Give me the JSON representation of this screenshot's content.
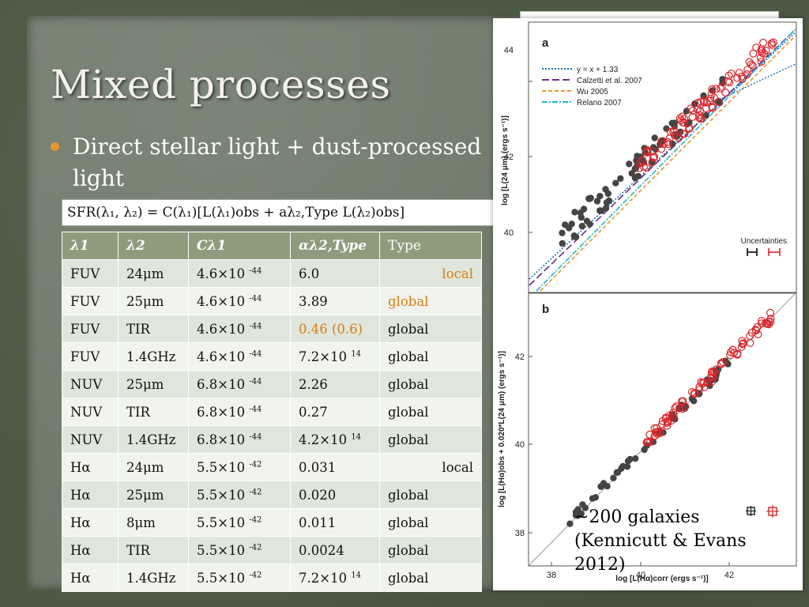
{
  "slide": {
    "title": "Mixed processes",
    "bullet": "Direct stellar light + dust-processed light",
    "formula": "SFR(λ₁, λ₂) = C(λ₁)[L(λ₁)obs + aλ₂,Type L(λ₂)obs]",
    "caption_line1": "~200 galaxies",
    "caption_line2": "(Kennicutt & Evans 2012)"
  },
  "colors": {
    "accent_orange": "#d77d11",
    "header_green": "#8e9c7d"
  },
  "table": {
    "headers": [
      "λ1",
      "λ2",
      "Cλ1",
      "αλ2,Type",
      "Type"
    ],
    "rows": [
      {
        "l1": "FUV",
        "l2": "24μm",
        "c_base": "4.6×10 ",
        "c_exp": "-44",
        "a_base": "6.0",
        "a_exp": "",
        "type": "local",
        "type_style": "orange-right",
        "a_style": ""
      },
      {
        "l1": "FUV",
        "l2": "25μm",
        "c_base": "4.6×10 ",
        "c_exp": "-44",
        "a_base": "3.89",
        "a_exp": "",
        "type": "global",
        "type_style": "orange",
        "a_style": ""
      },
      {
        "l1": "FUV",
        "l2": "TIR",
        "c_base": "4.6×10 ",
        "c_exp": "-44",
        "a_base": "0.46 (0.6)",
        "a_exp": "",
        "type": "global",
        "type_style": "",
        "a_style": "orange"
      },
      {
        "l1": "FUV",
        "l2": "1.4GHz",
        "c_base": "4.6×10 ",
        "c_exp": "-44",
        "a_base": "7.2×10 ",
        "a_exp": "14",
        "type": "global",
        "type_style": "",
        "a_style": ""
      },
      {
        "l1": "NUV",
        "l2": "25μm",
        "c_base": "6.8×10 ",
        "c_exp": "-44",
        "a_base": "2.26",
        "a_exp": "",
        "type": "global",
        "type_style": "",
        "a_style": ""
      },
      {
        "l1": "NUV",
        "l2": "TIR",
        "c_base": "6.8×10 ",
        "c_exp": "-44",
        "a_base": "0.27",
        "a_exp": "",
        "type": "global",
        "type_style": "",
        "a_style": ""
      },
      {
        "l1": "NUV",
        "l2": "1.4GHz",
        "c_base": "6.8×10 ",
        "c_exp": "-44",
        "a_base": "4.2×10 ",
        "a_exp": "14",
        "type": "global",
        "type_style": "",
        "a_style": ""
      },
      {
        "l1": "Hα",
        "l2": "24μm",
        "c_base": "5.5×10 ",
        "c_exp": "-42",
        "a_base": "0.031",
        "a_exp": "",
        "type": "local",
        "type_style": "right",
        "a_style": ""
      },
      {
        "l1": "Hα",
        "l2": "25μm",
        "c_base": "5.5×10 ",
        "c_exp": "-42",
        "a_base": "0.020",
        "a_exp": "",
        "type": "global",
        "type_style": "",
        "a_style": ""
      },
      {
        "l1": "Hα",
        "l2": "8μm",
        "c_base": "5.5×10 ",
        "c_exp": "-42",
        "a_base": "0.011",
        "a_exp": "",
        "type": "global",
        "type_style": "",
        "a_style": ""
      },
      {
        "l1": "Hα",
        "l2": "TIR",
        "c_base": "5.5×10 ",
        "c_exp": "-42",
        "a_base": "0.0024",
        "a_exp": "",
        "type": "global",
        "type_style": "",
        "a_style": ""
      },
      {
        "l1": "Hα",
        "l2": "1.4GHz",
        "c_base": "5.5×10 ",
        "c_exp": "-42",
        "a_base": "7.2×10 ",
        "a_exp": "14",
        "type": "global",
        "type_style": "",
        "a_style": ""
      }
    ]
  },
  "figure": {
    "panel_a": {
      "letter": "a",
      "ylabel": "log [L(24 μm) (ergs s⁻¹)]",
      "yticks": [
        "44",
        "42",
        "40"
      ],
      "legend": [
        {
          "label": "y = x + 1.33",
          "color": "#1f6fb4",
          "dash": "2,2"
        },
        {
          "label": "Calzetti et al. 2007",
          "color": "#6b2c8a",
          "dash": "9,4"
        },
        {
          "label": "Wu 2005",
          "color": "#f0962a",
          "dash": "5,3"
        },
        {
          "label": "Relano 2007",
          "color": "#27b3cf",
          "dash": "7,2,2,2"
        }
      ],
      "uncert_label": "Uncertainties"
    },
    "panel_b": {
      "letter": "b",
      "ylabel": "log [L(Hα)obs + 0.020*L(24 μm) (ergs s⁻¹)]",
      "yticks": [
        "42",
        "40",
        "38"
      ],
      "xticks": [
        "38",
        "40",
        "42"
      ],
      "xlabel": "log [L(Hα)corr (ergs s⁻¹)]"
    }
  }
}
